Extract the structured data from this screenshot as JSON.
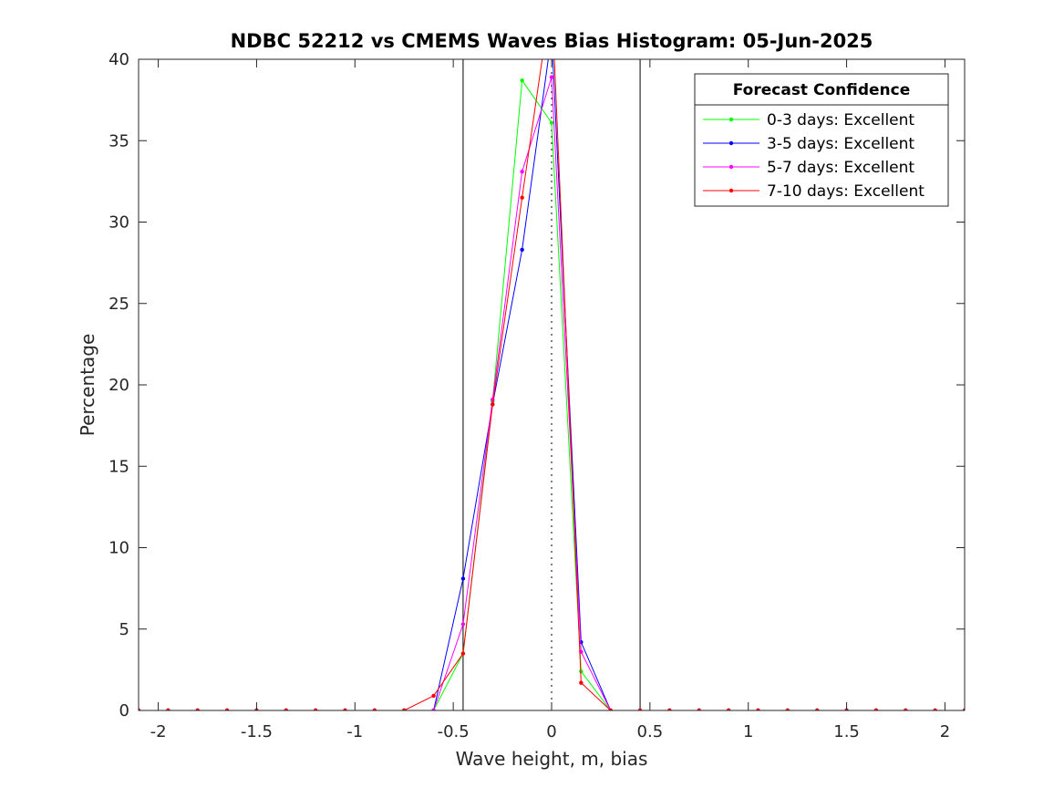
{
  "chart_data": {
    "type": "line",
    "title": "NDBC 52212 vs CMEMS Waves Bias Histogram: 05-Jun-2025",
    "xlabel": "Wave height, m, bias",
    "ylabel": "Percentage",
    "xlim": [
      -2.1,
      2.1
    ],
    "ylim": [
      0,
      40
    ],
    "xticks": [
      -2,
      -1.5,
      -1,
      -0.5,
      0,
      0.5,
      1,
      1.5,
      2
    ],
    "xtick_labels": [
      "-2",
      "-1.5",
      "-1",
      "-0.5",
      "0",
      "0.5",
      "1",
      "1.5",
      "2"
    ],
    "yticks": [
      0,
      5,
      10,
      15,
      20,
      25,
      30,
      35,
      40
    ],
    "ytick_labels": [
      "0",
      "5",
      "10",
      "15",
      "20",
      "25",
      "30",
      "35",
      "40"
    ],
    "grid": false,
    "reference_lines": {
      "vertical_solid": [
        -0.45,
        0.45
      ],
      "vertical_dotted": [
        0
      ]
    },
    "x": [
      -2.1,
      -1.95,
      -1.8,
      -1.65,
      -1.5,
      -1.35,
      -1.2,
      -1.05,
      -0.9,
      -0.75,
      -0.6,
      -0.45,
      -0.3,
      -0.15,
      0,
      0.15,
      0.3,
      0.45,
      0.6,
      0.75,
      0.9,
      1.05,
      1.2,
      1.35,
      1.5,
      1.65,
      1.8,
      1.95,
      2.1
    ],
    "series": [
      {
        "name": "0-3 days: Excellent",
        "color": "#00ff00",
        "values": [
          0,
          0,
          0,
          0,
          0,
          0,
          0,
          0,
          0,
          0,
          0,
          3.5,
          19.0,
          38.7,
          36.1,
          2.4,
          0,
          0,
          0,
          0,
          0,
          0,
          0,
          0,
          0,
          0,
          0,
          0,
          0
        ]
      },
      {
        "name": "3-5 days: Excellent",
        "color": "#0000ff",
        "values": [
          0,
          0,
          0,
          0,
          0,
          0,
          0,
          0,
          0,
          0,
          0,
          8.1,
          18.8,
          28.3,
          41.5,
          4.2,
          0,
          0,
          0,
          0,
          0,
          0,
          0,
          0,
          0,
          0,
          0,
          0,
          0
        ]
      },
      {
        "name": "5-7 days: Excellent",
        "color": "#ff00ff",
        "values": [
          0,
          0,
          0,
          0,
          0,
          0,
          0,
          0,
          0,
          0,
          0,
          5.3,
          19.1,
          33.1,
          38.9,
          3.6,
          0,
          0,
          0,
          0,
          0,
          0,
          0,
          0,
          0,
          0,
          0,
          0,
          0
        ]
      },
      {
        "name": "7-10 days: Excellent",
        "color": "#ff0000",
        "values": [
          0,
          0,
          0,
          0,
          0,
          0,
          0,
          0,
          0,
          0,
          0.9,
          3.5,
          18.8,
          31.5,
          44.0,
          1.7,
          0,
          0,
          0,
          0,
          0,
          0,
          0,
          0,
          0,
          0,
          0,
          0,
          0
        ]
      }
    ],
    "legend": {
      "title": "Forecast Confidence",
      "placement": "top-right"
    }
  }
}
